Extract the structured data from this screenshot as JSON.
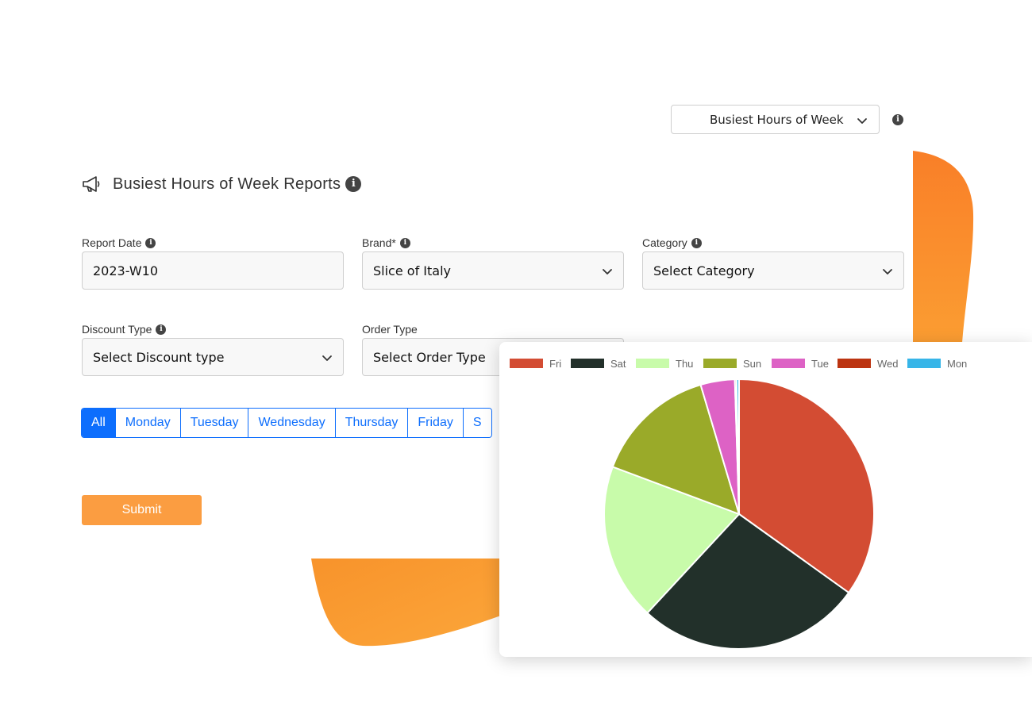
{
  "report_selector": {
    "value": "Busiest Hours of Week"
  },
  "page": {
    "title": "Busiest Hours of Week Reports"
  },
  "form": {
    "report_date": {
      "label": "Report Date",
      "value": "2023-W10"
    },
    "brand": {
      "label": "Brand*",
      "value": "Slice of Italy"
    },
    "category": {
      "label": "Category",
      "value": "Select Category"
    },
    "discount_type": {
      "label": "Discount Type",
      "value": "Select Discount type"
    },
    "order_type": {
      "label": "Order Type",
      "value": "Select Order Type"
    }
  },
  "day_filter": {
    "selected": "All",
    "options": [
      "All",
      "Monday",
      "Tuesday",
      "Wednesday",
      "Thursday",
      "Friday",
      "S"
    ]
  },
  "submit": {
    "label": "Submit"
  },
  "colors": {
    "accent": "#0d6efd",
    "submit": "#fb9d41",
    "blob": "#f8922f"
  },
  "icons": [
    "chevron-down-icon",
    "info-icon",
    "megaphone-icon"
  ],
  "chart_data": {
    "type": "pie",
    "legend_position": "top",
    "series": [
      {
        "name": "Fri",
        "value": 34.9,
        "color": "#d34c33"
      },
      {
        "name": "Sat",
        "value": 27.0,
        "color": "#22302a"
      },
      {
        "name": "Thu",
        "value": 18.8,
        "color": "#c8fbaa"
      },
      {
        "name": "Sun",
        "value": 14.7,
        "color": "#9aaa29"
      },
      {
        "name": "Tue",
        "value": 4.1,
        "color": "#dd62c5"
      },
      {
        "name": "Wed",
        "value": 0.2,
        "color": "#bc3411"
      },
      {
        "name": "Mon",
        "value": 0.3,
        "color": "#37b5e8"
      }
    ]
  }
}
